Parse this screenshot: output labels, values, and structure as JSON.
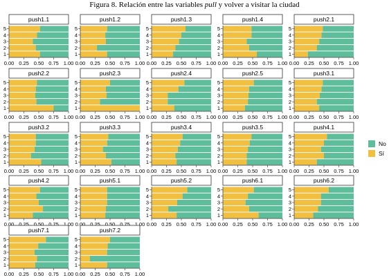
{
  "figure": {
    "title_pre": "Figura 8. Relación entre las variables ",
    "title_emph": "pull",
    "title_post": " y volver a visitar la ciudad"
  },
  "colors": {
    "No": "#5ebd9a",
    "Si": "#f2c040"
  },
  "chart_data": {
    "type": "bar",
    "orientation": "horizontal",
    "stacked": "fill",
    "categories": [
      "1",
      "2",
      "3",
      "4",
      "5"
    ],
    "x_ticks": [
      "0.00",
      "0.25",
      "0.50",
      "0.75",
      "1.00"
    ],
    "xlim": [
      0,
      1
    ],
    "legend": {
      "position": "right",
      "entries": [
        "No",
        "Sí"
      ]
    },
    "series_order": [
      "Sí",
      "No"
    ],
    "note": "values are the proportion 'Sí' for categories 1..5 (bottom to top); 'No' = 1 - Sí",
    "panels": [
      {
        "label": "push1.1",
        "si": [
          0.52,
          0.45,
          0.4,
          0.47,
          0.52
        ]
      },
      {
        "label": "push1.2",
        "si": [
          0.45,
          0.28,
          0.43,
          0.42,
          0.45
        ]
      },
      {
        "label": "push1.3",
        "si": [
          0.36,
          0.4,
          0.46,
          0.5,
          0.57
        ]
      },
      {
        "label": "push1.4",
        "si": [
          0.57,
          0.44,
          0.4,
          0.48,
          0.48
        ]
      },
      {
        "label": "push2.1",
        "si": [
          0.23,
          0.38,
          0.42,
          0.46,
          0.48
        ]
      },
      {
        "label": "push2.2",
        "si": [
          0.75,
          0.46,
          0.44,
          0.45,
          0.47
        ]
      },
      {
        "label": "push2.3",
        "si": [
          1.0,
          0.33,
          0.44,
          0.43,
          0.5
        ]
      },
      {
        "label": "push2.4",
        "si": [
          0.38,
          0.27,
          0.27,
          0.45,
          0.55
        ]
      },
      {
        "label": "push2.5",
        "si": [
          0.37,
          0.42,
          0.43,
          0.44,
          0.52
        ]
      },
      {
        "label": "push3.1",
        "si": [
          0.42,
          0.38,
          0.43,
          0.46,
          0.48
        ]
      },
      {
        "label": "push3.2",
        "si": [
          0.54,
          0.37,
          0.43,
          0.45,
          0.45
        ]
      },
      {
        "label": "push3.3",
        "si": [
          0.52,
          0.43,
          0.38,
          0.45,
          0.47
        ]
      },
      {
        "label": "push3.4",
        "si": [
          0.42,
          0.4,
          0.44,
          0.48,
          0.52
        ]
      },
      {
        "label": "push3.5",
        "si": [
          0.4,
          0.4,
          0.42,
          0.45,
          0.48
        ]
      },
      {
        "label": "push4.1",
        "si": [
          0.38,
          0.5,
          0.45,
          0.5,
          0.55
        ]
      },
      {
        "label": "push4.2",
        "si": [
          0.4,
          0.57,
          0.5,
          0.46,
          0.52
        ]
      },
      {
        "label": "push5.1",
        "si": [
          0.42,
          0.43,
          0.45,
          0.45,
          0.45
        ]
      },
      {
        "label": "push5.2",
        "si": [
          0.42,
          0.28,
          0.43,
          0.52,
          0.6
        ]
      },
      {
        "label": "push6.1",
        "si": [
          0.6,
          0.44,
          0.38,
          0.42,
          0.52
        ]
      },
      {
        "label": "push6.2",
        "si": [
          0.32,
          0.4,
          0.45,
          0.45,
          0.58
        ]
      },
      {
        "label": "push7.1",
        "si": [
          0.44,
          0.47,
          0.43,
          0.49,
          0.62
        ]
      },
      {
        "label": "push7.2",
        "si": [
          0.45,
          0.16,
          0.45,
          0.46,
          0.5
        ]
      }
    ]
  }
}
